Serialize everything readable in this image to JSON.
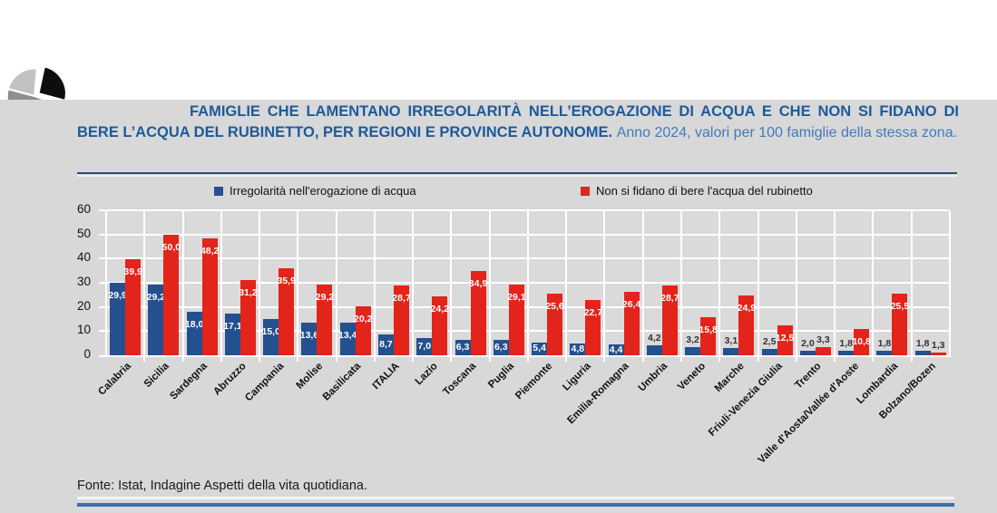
{
  "page": {
    "title_bold": "FAMIGLIE CHE LAMENTANO IRREGOLARITÀ NELL’EROGAZIONE DI ACQUA E CHE NON SI FIDANO DI BERE L’ACQUA DEL RUBINETTO, PER REGIONI E PROVINCE AUTONOME.",
    "title_regular": "Anno 2024, valori per 100 famiglie della stessa zona.",
    "source": "Fonte: Istat, Indagine Aspetti della vita quotidiana."
  },
  "colors": {
    "series1": "#24508f",
    "series2": "#e2241b",
    "title_bold": "#1d5a9b",
    "title_light": "#4379bb",
    "panel_bg": "#d8d8d8",
    "plot_bg": "#dadada",
    "rule_navy": "#2b4a87",
    "rule_blue_bottom": "#3f6fa8",
    "value_label_inside": "#ffffff",
    "value_label_outside": "#333333"
  },
  "chart_data": {
    "type": "bar",
    "title": "FAMIGLIE CHE LAMENTANO IRREGOLARITÀ NELL’EROGAZIONE DI ACQUA E CHE NON SI FIDANO DI BERE L’ACQUA DEL RUBINETTO, PER REGIONI E PROVINCE AUTONOME. Anno 2024, valori per 100 famiglie della stessa zona.",
    "categories": [
      "Calabria",
      "Sicilia",
      "Sardegna",
      "Abruzzo",
      "Campania",
      "Molise",
      "Basilicata",
      "ITALIA",
      "Lazio",
      "Toscana",
      "Puglia",
      "Piemonte",
      "Liguria",
      "Emilia-Romagna",
      "Umbria",
      "Veneto",
      "Marche",
      "Friuli-Venezia Giulia",
      "Trento",
      "Valle d'Aosta/Vallée d'Aoste",
      "Lombardia",
      "Bolzano/Bozen"
    ],
    "series": [
      {
        "name": "Irregolarità nell'erogazione di acqua",
        "color_key": "series1",
        "values": [
          29.9,
          29.2,
          18.0,
          17.1,
          15.0,
          13.6,
          13.4,
          8.7,
          7.0,
          6.3,
          6.3,
          5.4,
          4.8,
          4.4,
          4.2,
          3.2,
          3.1,
          2.5,
          2.0,
          1.8,
          1.8,
          1.8
        ]
      },
      {
        "name": "Non si fidano di bere l'acqua del rubinetto",
        "color_key": "series2",
        "values": [
          39.9,
          50.0,
          48.2,
          31.2,
          35.9,
          29.2,
          20.2,
          28.7,
          24.2,
          34.9,
          29.1,
          25.6,
          22.7,
          26.4,
          28.7,
          15.8,
          24.9,
          12.5,
          3.3,
          10.8,
          25.5,
          1.3
        ]
      }
    ],
    "ylim": [
      0,
      60
    ],
    "yticks": [
      0,
      10,
      20,
      30,
      40,
      50,
      60
    ],
    "grid": "white gridlines on gray plot, horizontal every 10 + vertical category separators",
    "legend_position": "top",
    "value_labels": "shown on every bar, comma decimal (e.g. 29,9); white inside tall bars, dark above short bars",
    "xlabel": "",
    "ylabel": ""
  }
}
